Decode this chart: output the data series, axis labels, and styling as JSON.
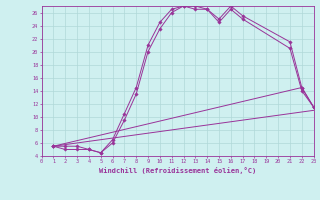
{
  "xlabel": "Windchill (Refroidissement éolien,°C)",
  "bg_color": "#cff0f0",
  "line_color": "#993399",
  "grid_color": "#aadddd",
  "xmin": 0,
  "xmax": 23,
  "ymin": 4,
  "ymax": 27,
  "yticks": [
    4,
    6,
    8,
    10,
    12,
    14,
    16,
    18,
    20,
    22,
    24,
    26
  ],
  "xticks": [
    0,
    1,
    2,
    3,
    4,
    5,
    6,
    7,
    8,
    9,
    10,
    11,
    12,
    13,
    14,
    15,
    16,
    17,
    18,
    19,
    20,
    21,
    22,
    23
  ],
  "series": [
    {
      "x": [
        1,
        2,
        3,
        4,
        5,
        6,
        7,
        8,
        9,
        10,
        11,
        12,
        13,
        14,
        15,
        16,
        17,
        21,
        22,
        23
      ],
      "y": [
        5.5,
        5.5,
        5.5,
        5.0,
        4.5,
        6.5,
        10.5,
        14.5,
        21.0,
        24.5,
        26.5,
        27.0,
        27.0,
        26.5,
        25.0,
        27.0,
        25.5,
        21.5,
        14.5,
        11.5
      ],
      "marker": true
    },
    {
      "x": [
        1,
        2,
        3,
        4,
        5,
        6,
        7,
        8,
        9,
        10,
        11,
        12,
        13,
        14,
        15,
        16,
        17,
        21,
        22,
        23
      ],
      "y": [
        5.5,
        5.0,
        5.0,
        5.0,
        4.5,
        6.0,
        9.5,
        13.5,
        20.0,
        23.5,
        26.0,
        27.0,
        26.5,
        26.5,
        24.5,
        26.5,
        25.0,
        20.5,
        14.0,
        11.5
      ],
      "marker": true
    },
    {
      "x": [
        1,
        22,
        23
      ],
      "y": [
        5.5,
        14.5,
        11.5
      ],
      "marker": true
    },
    {
      "x": [
        1,
        23
      ],
      "y": [
        5.5,
        11.0
      ],
      "marker": false
    }
  ]
}
